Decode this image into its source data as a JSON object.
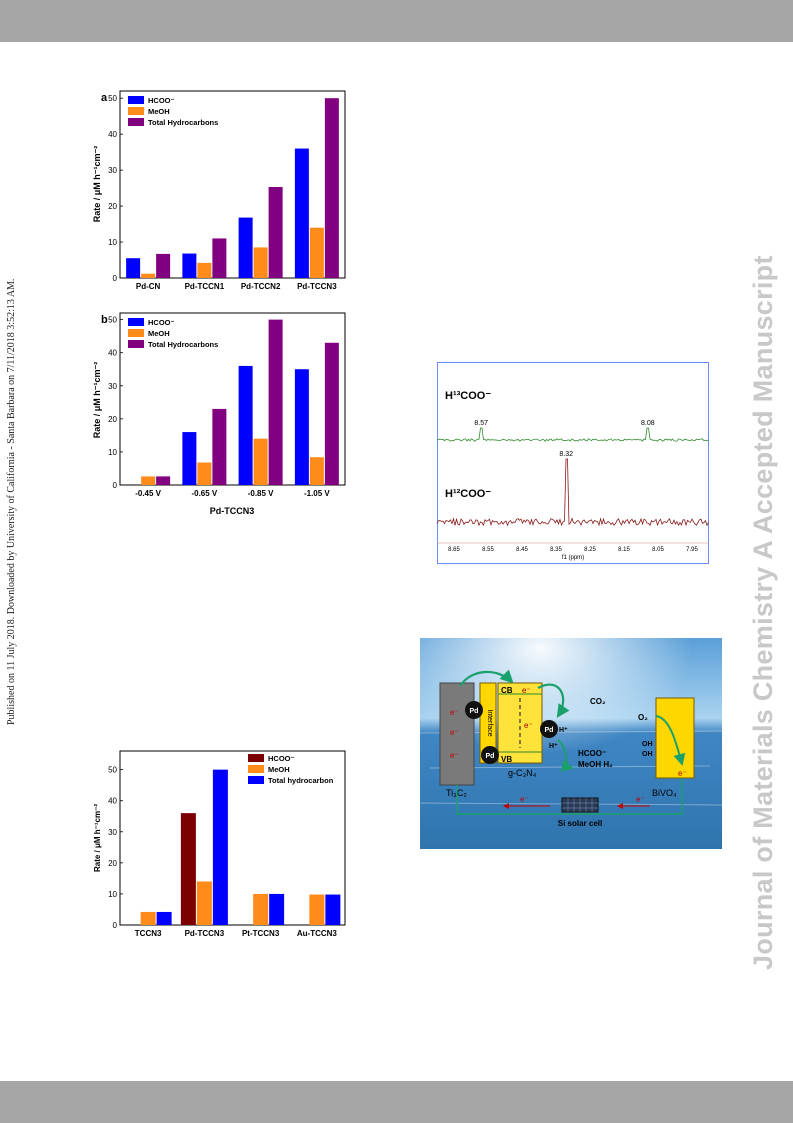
{
  "header": {
    "band_color": "#a6a6a6"
  },
  "footer": {
    "band_color": "#a6a6a6"
  },
  "side_note": "Published on 11 July 2018. Downloaded by University of California - Santa Barbara on 7/11/2018 3:52:13 AM.",
  "journal_mark": "Journal of Materials Chemistry A Accepted Manuscript",
  "colors": {
    "hcoo": "#0000ff",
    "meoh": "#ff8c1a",
    "total": "#800080",
    "hcoo_alt": "#7b0000",
    "nmr_top": "#2e8b2e",
    "nmr_bottom": "#8b1a1a"
  },
  "chart_data": [
    {
      "type": "bar",
      "panel": "a",
      "categories": [
        "Pd-CN",
        "Pd-TCCN1",
        "Pd-TCCN2",
        "Pd-TCCN3"
      ],
      "series": [
        {
          "name": "HCOO⁻",
          "values": [
            5.5,
            6.8,
            16.8,
            36
          ]
        },
        {
          "name": "MeOH",
          "values": [
            1.2,
            4.2,
            8.5,
            14
          ]
        },
        {
          "name": "Total Hydrocarbons",
          "values": [
            6.7,
            11,
            25.3,
            50
          ]
        }
      ],
      "ylabel": "Rate / μM h⁻¹cm⁻²",
      "ylim": [
        0,
        52
      ],
      "yticks": [
        "0",
        "10",
        "20",
        "30",
        "40",
        "50"
      ],
      "ytick_values": [
        0,
        10,
        20,
        30,
        40,
        50
      ],
      "legend": "top-left"
    },
    {
      "type": "bar",
      "panel": "b",
      "categories": [
        "-0.45 V",
        "-0.65 V",
        "-0.85 V",
        "-1.05 V"
      ],
      "series": [
        {
          "name": "HCOO⁻",
          "values": [
            0,
            16,
            36,
            35
          ]
        },
        {
          "name": "MeOH",
          "values": [
            2.6,
            6.8,
            14,
            8.4
          ]
        },
        {
          "name": "Total Hydrocarbons",
          "values": [
            2.6,
            23,
            50,
            43
          ]
        }
      ],
      "xlabel": "Pd-TCCN3",
      "ylabel": "Rate / μM h⁻¹cm⁻²",
      "ylim": [
        0,
        52
      ],
      "yticks": [
        "0",
        "10",
        "20",
        "30",
        "40",
        "50"
      ],
      "ytick_values": [
        0,
        10,
        20,
        30,
        40,
        50
      ],
      "legend": "top-left"
    },
    {
      "type": "line",
      "panel": "nmr",
      "series": [
        {
          "name": "H¹³COO⁻",
          "peaks": [
            8.57,
            8.08
          ]
        },
        {
          "name": "H¹²COO⁻",
          "peaks": [
            8.32
          ]
        }
      ],
      "xlabel": "f1 (ppm)",
      "xticks": [
        "8.65",
        "8.55",
        "8.45",
        "8.35",
        "8.25",
        "8.15",
        "8.05",
        "7.95"
      ],
      "xtick_values": [
        8.65,
        8.55,
        8.45,
        8.35,
        8.25,
        8.15,
        8.05,
        7.95
      ],
      "xlim": [
        8.7,
        7.9
      ]
    },
    {
      "type": "bar",
      "panel": "c",
      "categories": [
        "TCCN3",
        "Pd-TCCN3",
        "Pt-TCCN3",
        "Au-TCCN3"
      ],
      "series": [
        {
          "name": "HCOO⁻",
          "values": [
            0,
            36,
            0,
            0
          ]
        },
        {
          "name": "MeOH",
          "values": [
            4.2,
            14,
            10,
            9.8
          ]
        },
        {
          "name": "Total hydrocarbon",
          "values": [
            4.2,
            50,
            10,
            9.8
          ]
        }
      ],
      "ylabel": "Rate / μM h⁻¹cm⁻²",
      "ylim": [
        0,
        56
      ],
      "yticks": [
        "0",
        "10",
        "20",
        "30",
        "40",
        "50"
      ],
      "ytick_values": [
        0,
        10,
        20,
        30,
        40,
        50
      ],
      "legend": "top-right"
    }
  ],
  "diagram": {
    "ti3c2": "Ti₃C₂",
    "gc3n4": "g-C₃N₄",
    "bivo4": "BiVO₄",
    "interface": "Interface",
    "cb": "CB",
    "vb": "VB",
    "pd": "Pd",
    "electron": "e⁻",
    "hplus": "H⁺",
    "co2": "CO₂",
    "o2": "O₂",
    "oh": "OH",
    "products": "HCOO⁻",
    "products2": "MeOH  H₂",
    "solar_cell": "Si solar cell"
  }
}
